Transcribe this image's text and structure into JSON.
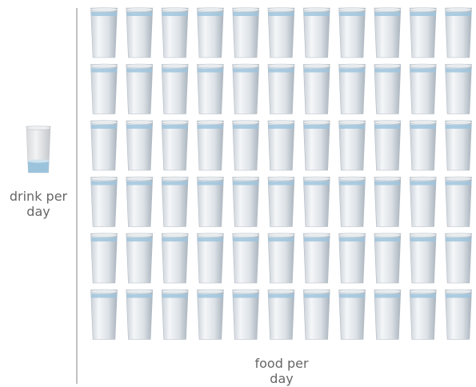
{
  "chart_data": {
    "type": "pictogram",
    "categories": [
      "drink per day",
      "food per day"
    ],
    "values": [
      0.25,
      66
    ],
    "color": "#9cc3dc"
  }
}
